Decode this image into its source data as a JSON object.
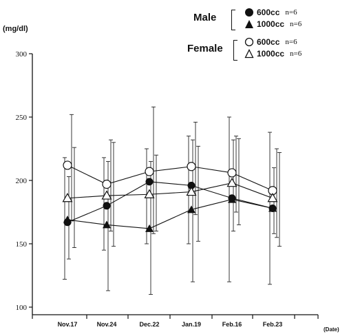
{
  "chart_data": {
    "type": "line",
    "ylabel": "(mg/dl)",
    "xlabel": "(Date)",
    "categories": [
      "Nov.17",
      "Nov.24",
      "Dec.22",
      "Jan.19",
      "Feb.16",
      "Feb.23"
    ],
    "ylim": [
      100,
      300
    ],
    "yticks": [
      100,
      150,
      200,
      250,
      300
    ],
    "grid": false,
    "legend_position": "top-right",
    "legend": {
      "groups": [
        {
          "label": "Male",
          "items": [
            {
              "label": "600cc",
              "n": "n=6"
            },
            {
              "label": "1000cc",
              "n": "n=6"
            }
          ]
        },
        {
          "label": "Female",
          "items": [
            {
              "label": "600cc",
              "n": "n=6"
            },
            {
              "label": "1000cc",
              "n": "n=6"
            }
          ]
        }
      ]
    },
    "series": [
      {
        "marker": "filled-circle",
        "color": "#111111",
        "values": [
          167,
          180,
          199,
          196,
          186,
          178
        ],
        "err_low": [
          122,
          145,
          150,
          150,
          120,
          118
        ],
        "err_high": [
          218,
          218,
          225,
          235,
          250,
          238
        ]
      },
      {
        "marker": "filled-triangle",
        "color": "#111111",
        "values": [
          169,
          165,
          162,
          177,
          185,
          178
        ],
        "err_low": [
          138,
          113,
          110,
          120,
          160,
          158
        ],
        "err_high": [
          203,
          215,
          215,
          232,
          232,
          210
        ]
      },
      {
        "marker": "open-circle",
        "color": "#111111",
        "values": [
          212,
          197,
          207,
          211,
          206,
          192
        ],
        "err_low": [
          168,
          160,
          158,
          173,
          175,
          155
        ],
        "err_high": [
          252,
          232,
          258,
          246,
          235,
          225
        ]
      },
      {
        "marker": "open-triangle",
        "color": "#111111",
        "values": [
          186,
          188,
          189,
          191,
          198,
          186
        ],
        "err_low": [
          147,
          148,
          160,
          152,
          165,
          148
        ],
        "err_high": [
          226,
          230,
          220,
          227,
          233,
          222
        ]
      }
    ]
  }
}
